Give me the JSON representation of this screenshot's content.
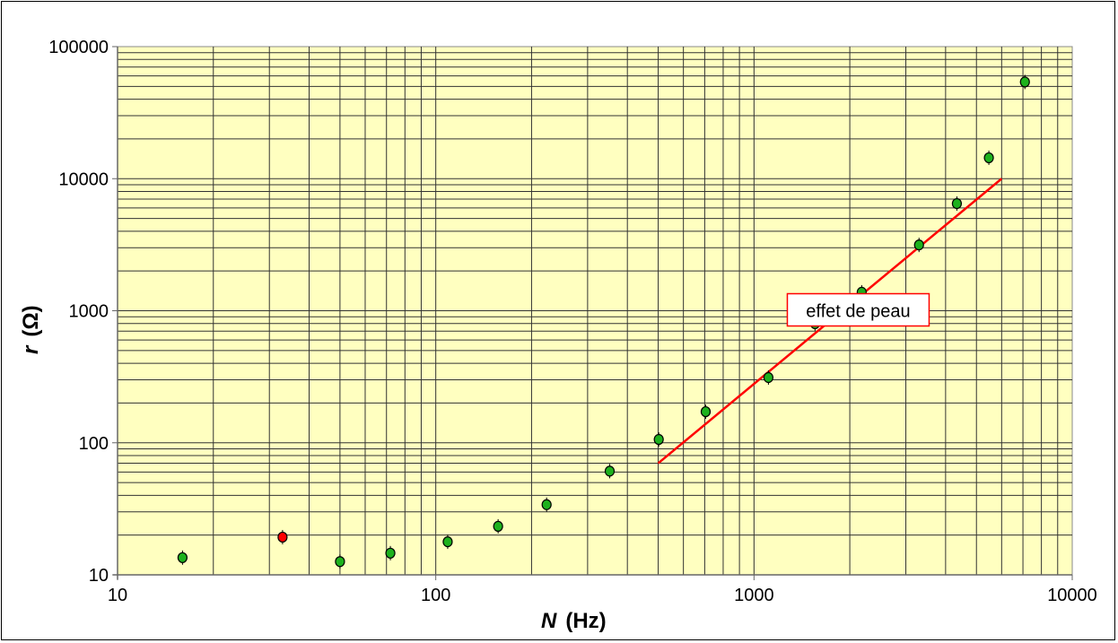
{
  "chart_data": {
    "type": "scatter",
    "x_scale": "log",
    "y_scale": "log",
    "xlim": [
      10,
      10000
    ],
    "ylim": [
      10,
      100000
    ],
    "grid": true,
    "plot_background": "#ffffc0",
    "xlabel": {
      "symbol": "N",
      "unit": "(Hz)"
    },
    "ylabel": {
      "symbol": "r",
      "unit": "(Ω)"
    },
    "x_ticks": [
      "10",
      "100",
      "1000",
      "10000"
    ],
    "y_ticks": [
      "10",
      "100",
      "1000",
      "10000",
      "100000"
    ],
    "points": [
      {
        "x": 16,
        "y": 13.5,
        "color": "#1db11d"
      },
      {
        "x": 33,
        "y": 19.3,
        "color": "#ff0000"
      },
      {
        "x": 50,
        "y": 12.6,
        "color": "#1db11d"
      },
      {
        "x": 72,
        "y": 14.6,
        "color": "#1db11d"
      },
      {
        "x": 109,
        "y": 17.8,
        "color": "#1db11d"
      },
      {
        "x": 157,
        "y": 23.3,
        "color": "#1db11d"
      },
      {
        "x": 223,
        "y": 34,
        "color": "#1db11d"
      },
      {
        "x": 352,
        "y": 61,
        "color": "#1db11d"
      },
      {
        "x": 502,
        "y": 106,
        "color": "#1db11d"
      },
      {
        "x": 705,
        "y": 172,
        "color": "#1db11d"
      },
      {
        "x": 1110,
        "y": 312,
        "color": "#1db11d"
      },
      {
        "x": 1555,
        "y": 798,
        "color": "#1db11d"
      },
      {
        "x": 2180,
        "y": 1380,
        "color": "#1db11d"
      },
      {
        "x": 3300,
        "y": 3150,
        "color": "#1db11d"
      },
      {
        "x": 4340,
        "y": 6480,
        "color": "#1db11d"
      },
      {
        "x": 5470,
        "y": 14400,
        "color": "#1db11d"
      },
      {
        "x": 7100,
        "y": 54000,
        "color": "#1db11d"
      }
    ],
    "trend_line": {
      "x": [
        500,
        6000
      ],
      "y": [
        70,
        10000
      ],
      "color": "#ff0000"
    },
    "annotation": {
      "text": "effet de peau",
      "x": 2500,
      "y": 1000
    }
  }
}
